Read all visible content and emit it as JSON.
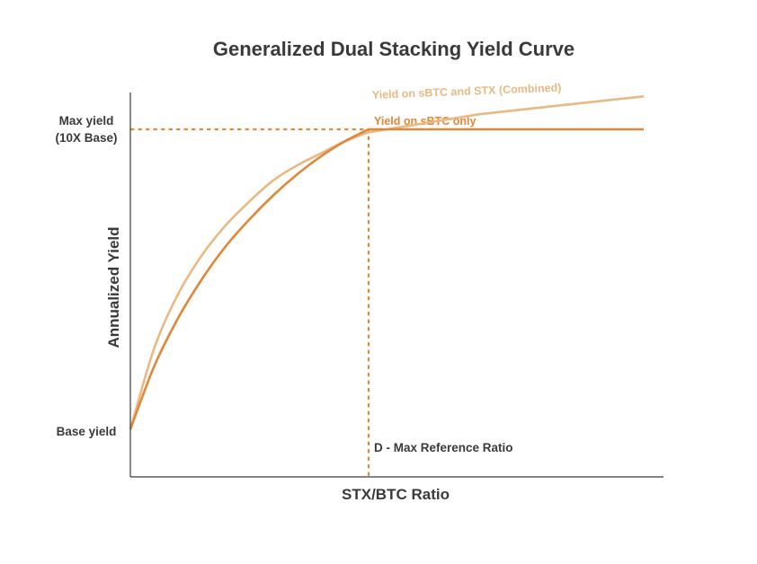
{
  "chart_data": {
    "type": "line",
    "title": "Generalized Dual Stacking Yield Curve",
    "xlabel": "STX/BTC Ratio",
    "ylabel": "Annualized Yield",
    "y_tick_labels": {
      "max": [
        "Max yield",
        "(10X Base)"
      ],
      "base": "Base yield"
    },
    "reference_line_label": "D - Max Reference Ratio",
    "grid": false,
    "series": [
      {
        "name": "Yield on sBTC and STX (Combined)",
        "color": "#E8B985",
        "relative_values": [
          0.0,
          0.27,
          0.45,
          0.58,
          0.68,
          0.76,
          0.83,
          0.88,
          0.92,
          0.96,
          0.99,
          1.02,
          1.05,
          1.07,
          1.09,
          1.11
        ]
      },
      {
        "name": "Yield on sBTC only",
        "color": "#E0883A",
        "relative_values": [
          0.0,
          0.21,
          0.37,
          0.5,
          0.61,
          0.7,
          0.78,
          0.85,
          0.91,
          0.96,
          1.0,
          1.0,
          1.0,
          1.0,
          1.0,
          1.0
        ]
      }
    ],
    "reference_color": "#E0883A",
    "text_color": "#3a3a3a",
    "axis_color": "#3a3a3a"
  }
}
